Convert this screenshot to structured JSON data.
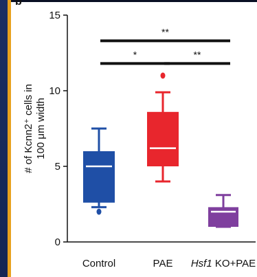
{
  "panel_letter": "b",
  "chart_data": {
    "type": "boxplot",
    "ylabel_line1": "# of Kcnn2⁺ cells in",
    "ylabel_line2": "100 μm width",
    "ylim": [
      0,
      15
    ],
    "yticks": [
      0,
      5,
      10,
      15
    ],
    "categories": [
      {
        "label": "Control",
        "italic_prefix": ""
      },
      {
        "label": "PAE",
        "italic_prefix": ""
      },
      {
        "label": " KO+PAE",
        "italic_prefix": "Hsf1"
      }
    ],
    "series": [
      {
        "category": "Control",
        "color": "#1f4fa6",
        "whisker_low": 2.3,
        "q1": 2.6,
        "median": 5.0,
        "q3": 6.0,
        "whisker_high": 7.5,
        "outliers": [
          2.0
        ]
      },
      {
        "category": "PAE",
        "color": "#e8262d",
        "whisker_low": 4.0,
        "q1": 5.0,
        "median": 6.2,
        "q3": 8.6,
        "whisker_high": 9.9,
        "outliers": [
          11.0
        ]
      },
      {
        "category": "Hsf1 KO+PAE",
        "color": "#7f3f9e",
        "whisker_low": 1.0,
        "q1": 1.0,
        "median": 2.0,
        "q3": 2.3,
        "whisker_high": 3.1,
        "outliers": []
      }
    ],
    "significance": [
      {
        "from": "Control",
        "to": "Hsf1 KO+PAE",
        "label": "**",
        "y": 13.3
      },
      {
        "from": "Control",
        "to": "PAE",
        "label": "*",
        "y": 11.8
      },
      {
        "from": "PAE",
        "to": "Hsf1 KO+PAE",
        "label": "**",
        "y": 11.8
      }
    ]
  }
}
